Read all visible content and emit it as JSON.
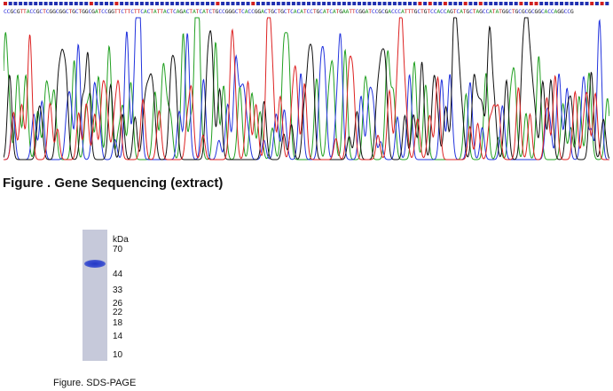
{
  "sequencing": {
    "sequence": "CCGCGTTACCGCTCGGCGGCTGCTGGCGATCCGGTTCTTCTTCACTATTACTCAGACTATCATCTGCCGGGCTCACCGGACTGCTGCTCACATCCTGCATCATGAATTCGGATCCGCGACCCATTTGCTGTCCACCAGTCATGCTAGCCATATGGCTGCGCGCGGCACCAGGCCG",
    "caption": "Figure . Gene Sequencing (extract)",
    "trace_colors": {
      "A": "#22a022",
      "C": "#2233dd",
      "G": "#111111",
      "T": "#dd2222"
    }
  },
  "sds_page": {
    "unit_label": "kDa",
    "markers": [
      {
        "label": "70",
        "kda": 70
      },
      {
        "label": "44",
        "kda": 44
      },
      {
        "label": "33",
        "kda": 33
      },
      {
        "label": "26",
        "kda": 26
      },
      {
        "label": "22",
        "kda": 22
      },
      {
        "label": "18",
        "kda": 18
      },
      {
        "label": "14",
        "kda": 14
      },
      {
        "label": "10",
        "kda": 10
      }
    ],
    "band_kda": 55,
    "caption": "Figure. SDS-PAGE"
  }
}
